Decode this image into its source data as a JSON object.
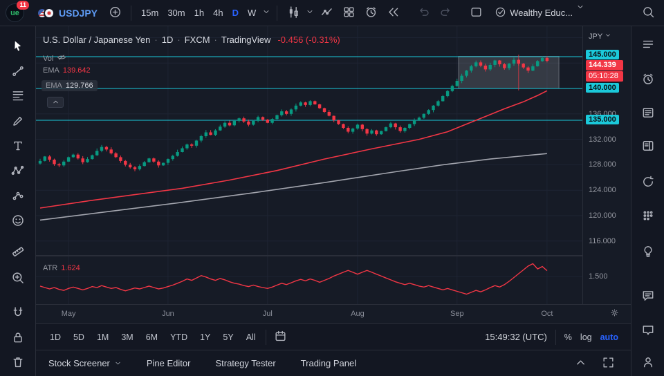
{
  "topbar": {
    "logo_text": "ue",
    "notification_count": "11",
    "symbol": "USDJPY",
    "timeframes": [
      "15m",
      "30m",
      "1h",
      "4h",
      "D",
      "W"
    ],
    "active_timeframe": "D",
    "account_label": "Wealthy Educ..."
  },
  "left_toolbar": {
    "tools": [
      {
        "name": "cursor",
        "icon": "cursor",
        "active": true
      },
      {
        "name": "trend-line",
        "icon": "trendline"
      },
      {
        "name": "fib-retracement",
        "icon": "fib"
      },
      {
        "name": "brush",
        "icon": "brush"
      },
      {
        "name": "text",
        "icon": "text"
      },
      {
        "name": "xabcd-pattern",
        "icon": "pattern"
      },
      {
        "name": "prediction",
        "icon": "forecast"
      },
      {
        "name": "emoji",
        "icon": "emoji"
      },
      {
        "name": "measure",
        "icon": "ruler"
      },
      {
        "name": "zoom-in",
        "icon": "zoom"
      },
      {
        "name": "magnet",
        "icon": "magnet"
      },
      {
        "name": "lock-drawings",
        "icon": "lock"
      },
      {
        "name": "remove-drawings",
        "icon": "trash"
      }
    ]
  },
  "right_toolbar": {
    "panels": [
      {
        "name": "watchlist",
        "icon": "watchlist"
      },
      {
        "name": "alerts",
        "icon": "alarm"
      },
      {
        "name": "news",
        "icon": "news"
      },
      {
        "name": "data-window",
        "icon": "datawin"
      },
      {
        "name": "hotlists",
        "icon": "hotlist"
      },
      {
        "name": "calendar",
        "icon": "calendar"
      },
      {
        "name": "ideas",
        "icon": "idea"
      },
      {
        "name": "private-chat",
        "icon": "chat"
      },
      {
        "name": "public-chat",
        "icon": "bubble"
      },
      {
        "name": "community",
        "icon": "people"
      }
    ]
  },
  "legend": {
    "title": "U.S. Dollar / Japanese Yen",
    "separator": "·",
    "interval": "1D",
    "exchange": "FXCM",
    "platform": "TradingView",
    "change": "-0.456 (-0.31%)",
    "vol_label": "Vol",
    "ema_fast_label": "EMA",
    "ema_fast_value": "139.642",
    "ema_slow_label": "EMA",
    "ema_slow_value": "129.766",
    "atr_label": "ATR",
    "atr_value": "1.624"
  },
  "price_axis": {
    "currency": "JPY",
    "current_price": "144.339",
    "countdown": "05:10:28"
  },
  "range_bar": {
    "ranges": [
      "1D",
      "5D",
      "1M",
      "3M",
      "6M",
      "YTD",
      "1Y",
      "5Y",
      "All"
    ],
    "clock": "15:49:32 (UTC)",
    "percent_label": "%",
    "log_label": "log",
    "auto_label": "auto"
  },
  "bottom_tabs": [
    {
      "label": "Stock Screener",
      "menu": true
    },
    {
      "label": "Pine Editor"
    },
    {
      "label": "Strategy Tester"
    },
    {
      "label": "Trading Panel"
    }
  ],
  "colors": {
    "accent_blue": "#2962ff",
    "up": "#089981",
    "down": "#f23645",
    "level_cyan": "#1bc9da",
    "ema_fast": "#f23645",
    "ema_slow": "#b2b5be",
    "atr_line": "#f23645",
    "grid": "#1e2433"
  },
  "chart_data": {
    "type": "candlestick",
    "symbol": "USDJPY",
    "interval": "1D",
    "first_open": 128.2,
    "closes": [
      128.6,
      129.3,
      128.8,
      128.1,
      127.9,
      128.5,
      129.2,
      129.6,
      129.0,
      128.4,
      128.9,
      129.5,
      130.2,
      130.8,
      130.4,
      129.8,
      129.2,
      128.6,
      128.0,
      127.6,
      127.3,
      127.8,
      128.4,
      129.0,
      128.5,
      127.9,
      128.3,
      128.9,
      129.4,
      130.0,
      130.6,
      131.2,
      131.0,
      131.8,
      132.5,
      133.1,
      132.7,
      133.4,
      134.0,
      134.6,
      134.2,
      134.9,
      135.3,
      134.8,
      134.3,
      134.9,
      135.5,
      135.1,
      134.6,
      135.2,
      135.8,
      136.4,
      136.0,
      136.7,
      137.3,
      137.8,
      137.4,
      138.0,
      137.5,
      136.9,
      136.3,
      135.7,
      135.0,
      134.4,
      133.8,
      133.2,
      133.7,
      134.3,
      133.6,
      132.9,
      133.4,
      132.8,
      133.3,
      133.9,
      134.5,
      133.9,
      133.3,
      133.8,
      134.4,
      135.0,
      135.4,
      136.0,
      136.6,
      137.3,
      138.0,
      138.8,
      139.6,
      140.4,
      141.2,
      142.0,
      142.8,
      143.5,
      144.1,
      143.6,
      143.0,
      143.7,
      144.4,
      143.8,
      143.2,
      143.9,
      144.5,
      143.9,
      143.3,
      142.8,
      143.5,
      144.3,
      144.795,
      144.339
    ],
    "ema_fast_points": [
      [
        0,
        121.2
      ],
      [
        10,
        122.3
      ],
      [
        20,
        123.3
      ],
      [
        30,
        124.3
      ],
      [
        40,
        125.6
      ],
      [
        50,
        127.1
      ],
      [
        60,
        128.9
      ],
      [
        70,
        130.5
      ],
      [
        80,
        132.0
      ],
      [
        86,
        133.2
      ],
      [
        90,
        134.4
      ],
      [
        94,
        135.6
      ],
      [
        98,
        136.8
      ],
      [
        102,
        137.9
      ],
      [
        105,
        138.9
      ],
      [
        107,
        139.642
      ]
    ],
    "ema_slow_points": [
      [
        0,
        119.3
      ],
      [
        15,
        120.7
      ],
      [
        30,
        122.1
      ],
      [
        45,
        123.6
      ],
      [
        60,
        125.2
      ],
      [
        75,
        126.9
      ],
      [
        85,
        128.0
      ],
      [
        95,
        128.9
      ],
      [
        102,
        129.4
      ],
      [
        107,
        129.766
      ]
    ],
    "atr_values": [
      1.3,
      1.27,
      1.24,
      1.27,
      1.23,
      1.21,
      1.25,
      1.28,
      1.25,
      1.22,
      1.25,
      1.29,
      1.27,
      1.31,
      1.28,
      1.25,
      1.27,
      1.23,
      1.2,
      1.23,
      1.26,
      1.24,
      1.27,
      1.3,
      1.27,
      1.24,
      1.26,
      1.29,
      1.32,
      1.36,
      1.4,
      1.45,
      1.42,
      1.47,
      1.52,
      1.49,
      1.45,
      1.42,
      1.46,
      1.43,
      1.39,
      1.36,
      1.34,
      1.31,
      1.29,
      1.32,
      1.29,
      1.27,
      1.25,
      1.28,
      1.32,
      1.36,
      1.33,
      1.37,
      1.41,
      1.44,
      1.41,
      1.45,
      1.42,
      1.38,
      1.42,
      1.46,
      1.51,
      1.55,
      1.59,
      1.63,
      1.59,
      1.55,
      1.59,
      1.63,
      1.59,
      1.55,
      1.51,
      1.47,
      1.43,
      1.39,
      1.36,
      1.33,
      1.36,
      1.33,
      1.3,
      1.28,
      1.31,
      1.28,
      1.25,
      1.22,
      1.25,
      1.22,
      1.19,
      1.16,
      1.13,
      1.17,
      1.21,
      1.18,
      1.22,
      1.27,
      1.31,
      1.28,
      1.33,
      1.4,
      1.48,
      1.56,
      1.64,
      1.72,
      1.77,
      1.66,
      1.71,
      1.624
    ],
    "levels": [
      145.0,
      140.0,
      135.0
    ],
    "grid_prices": [
      116,
      120,
      124,
      128,
      132,
      136,
      140,
      144,
      148
    ],
    "grid_label_prices": [
      136,
      132,
      128,
      124,
      120,
      116
    ],
    "atr_axis_level": 1.5,
    "month_ticks": [
      {
        "label": "May",
        "index": 6
      },
      {
        "label": "Jun",
        "index": 27
      },
      {
        "label": "Jul",
        "index": 48
      },
      {
        "label": "Aug",
        "index": 67
      },
      {
        "label": "Sep",
        "index": 88
      },
      {
        "label": "Oct",
        "index": 107
      }
    ],
    "range_box": {
      "from_index": 88.3,
      "to_index": 109.5,
      "price_top": 145.05,
      "price_bottom": 140.0
    },
    "marker_line": {
      "index": 101,
      "price_top": 145.3,
      "price_bottom": 139.7
    },
    "current_price": 144.339,
    "y_axis_main": {
      "min": 113.7,
      "max": 149.8
    },
    "y_axis_atr": {
      "min": 0.95,
      "max": 1.85
    }
  }
}
